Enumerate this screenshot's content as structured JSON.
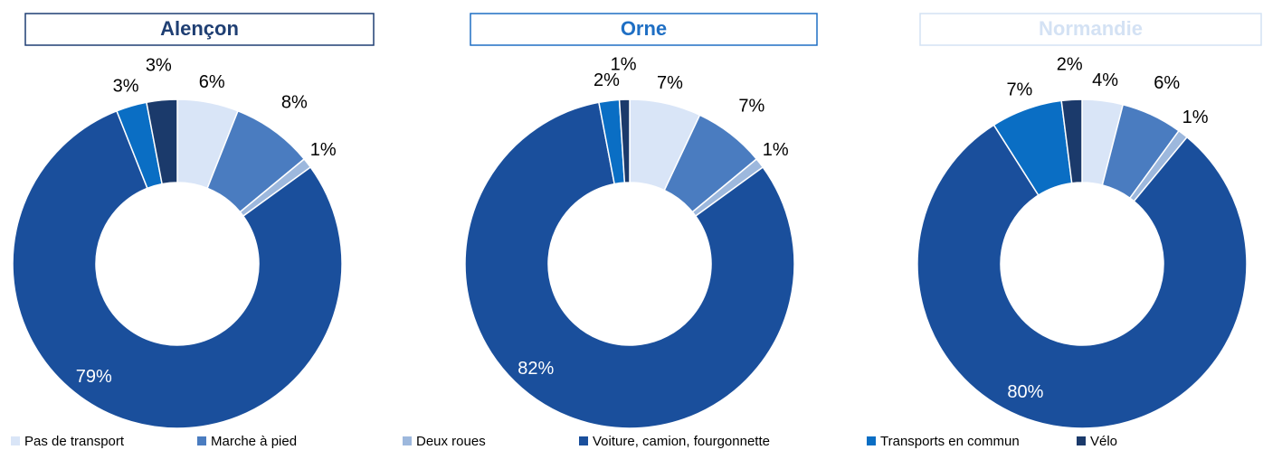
{
  "legend": {
    "labels": [
      "Pas de transport",
      "Marche à pied",
      "Deux roues",
      "Voiture, camion, fourgonnette",
      "Transports en commun",
      "Vélo"
    ],
    "colors": [
      "#d9e5f7",
      "#4a7cc0",
      "#9db8dd",
      "#1a4f9c",
      "#0a6ec4",
      "#1b3a6b"
    ]
  },
  "chart_data": [
    {
      "type": "donut",
      "title": "Alençon",
      "title_color": "#1f3f73",
      "border_color": "#1f3f73",
      "values": [
        6,
        8,
        1,
        79,
        3,
        3
      ],
      "value_labels": [
        "6%",
        "8%",
        "1%",
        "79%",
        "3%",
        "3%"
      ]
    },
    {
      "type": "donut",
      "title": "Orne",
      "title_color": "#1f6fc4",
      "border_color": "#1f6fc4",
      "values": [
        7,
        7,
        1,
        82,
        2,
        1
      ],
      "value_labels": [
        "7%",
        "7%",
        "1%",
        "82%",
        "2%",
        "1%"
      ]
    },
    {
      "type": "donut",
      "title": "Normandie",
      "title_color": "#d4e2f4",
      "border_color": "#d4e2f4",
      "values": [
        4,
        6,
        1,
        80,
        7,
        2
      ],
      "value_labels": [
        "4%",
        "6%",
        "1%",
        "80%",
        "7%",
        "2%"
      ]
    }
  ]
}
